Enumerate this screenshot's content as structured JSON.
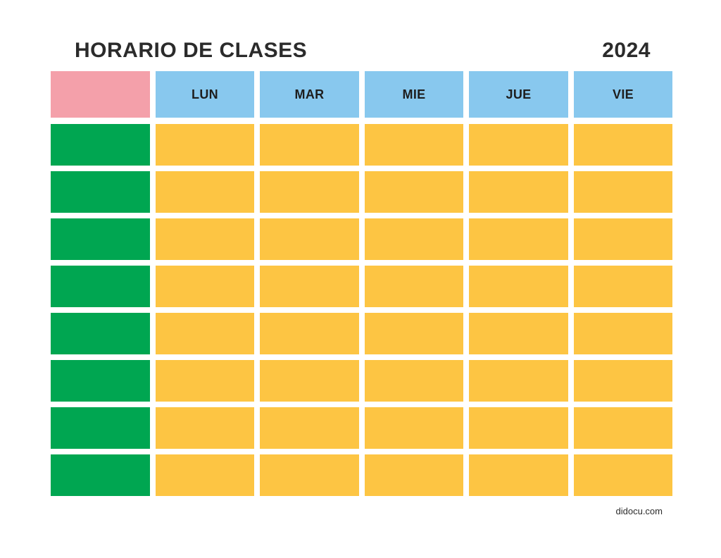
{
  "header": {
    "title": "HORARIO DE CLASES",
    "year": "2024"
  },
  "days": [
    "LUN",
    "MAR",
    "MIE",
    "JUE",
    "VIE"
  ],
  "rows": [
    {
      "time": "",
      "slots": [
        "",
        "",
        "",
        "",
        ""
      ]
    },
    {
      "time": "",
      "slots": [
        "",
        "",
        "",
        "",
        ""
      ]
    },
    {
      "time": "",
      "slots": [
        "",
        "",
        "",
        "",
        ""
      ]
    },
    {
      "time": "",
      "slots": [
        "",
        "",
        "",
        "",
        ""
      ]
    },
    {
      "time": "",
      "slots": [
        "",
        "",
        "",
        "",
        ""
      ]
    },
    {
      "time": "",
      "slots": [
        "",
        "",
        "",
        "",
        ""
      ]
    },
    {
      "time": "",
      "slots": [
        "",
        "",
        "",
        "",
        ""
      ]
    },
    {
      "time": "",
      "slots": [
        "",
        "",
        "",
        "",
        ""
      ]
    }
  ],
  "footer": {
    "source": "didocu.com"
  },
  "colors": {
    "corner": "#f4a0aa",
    "day_header": "#88c8ee",
    "time_cell": "#00a651",
    "slot_cell": "#fdc543"
  }
}
